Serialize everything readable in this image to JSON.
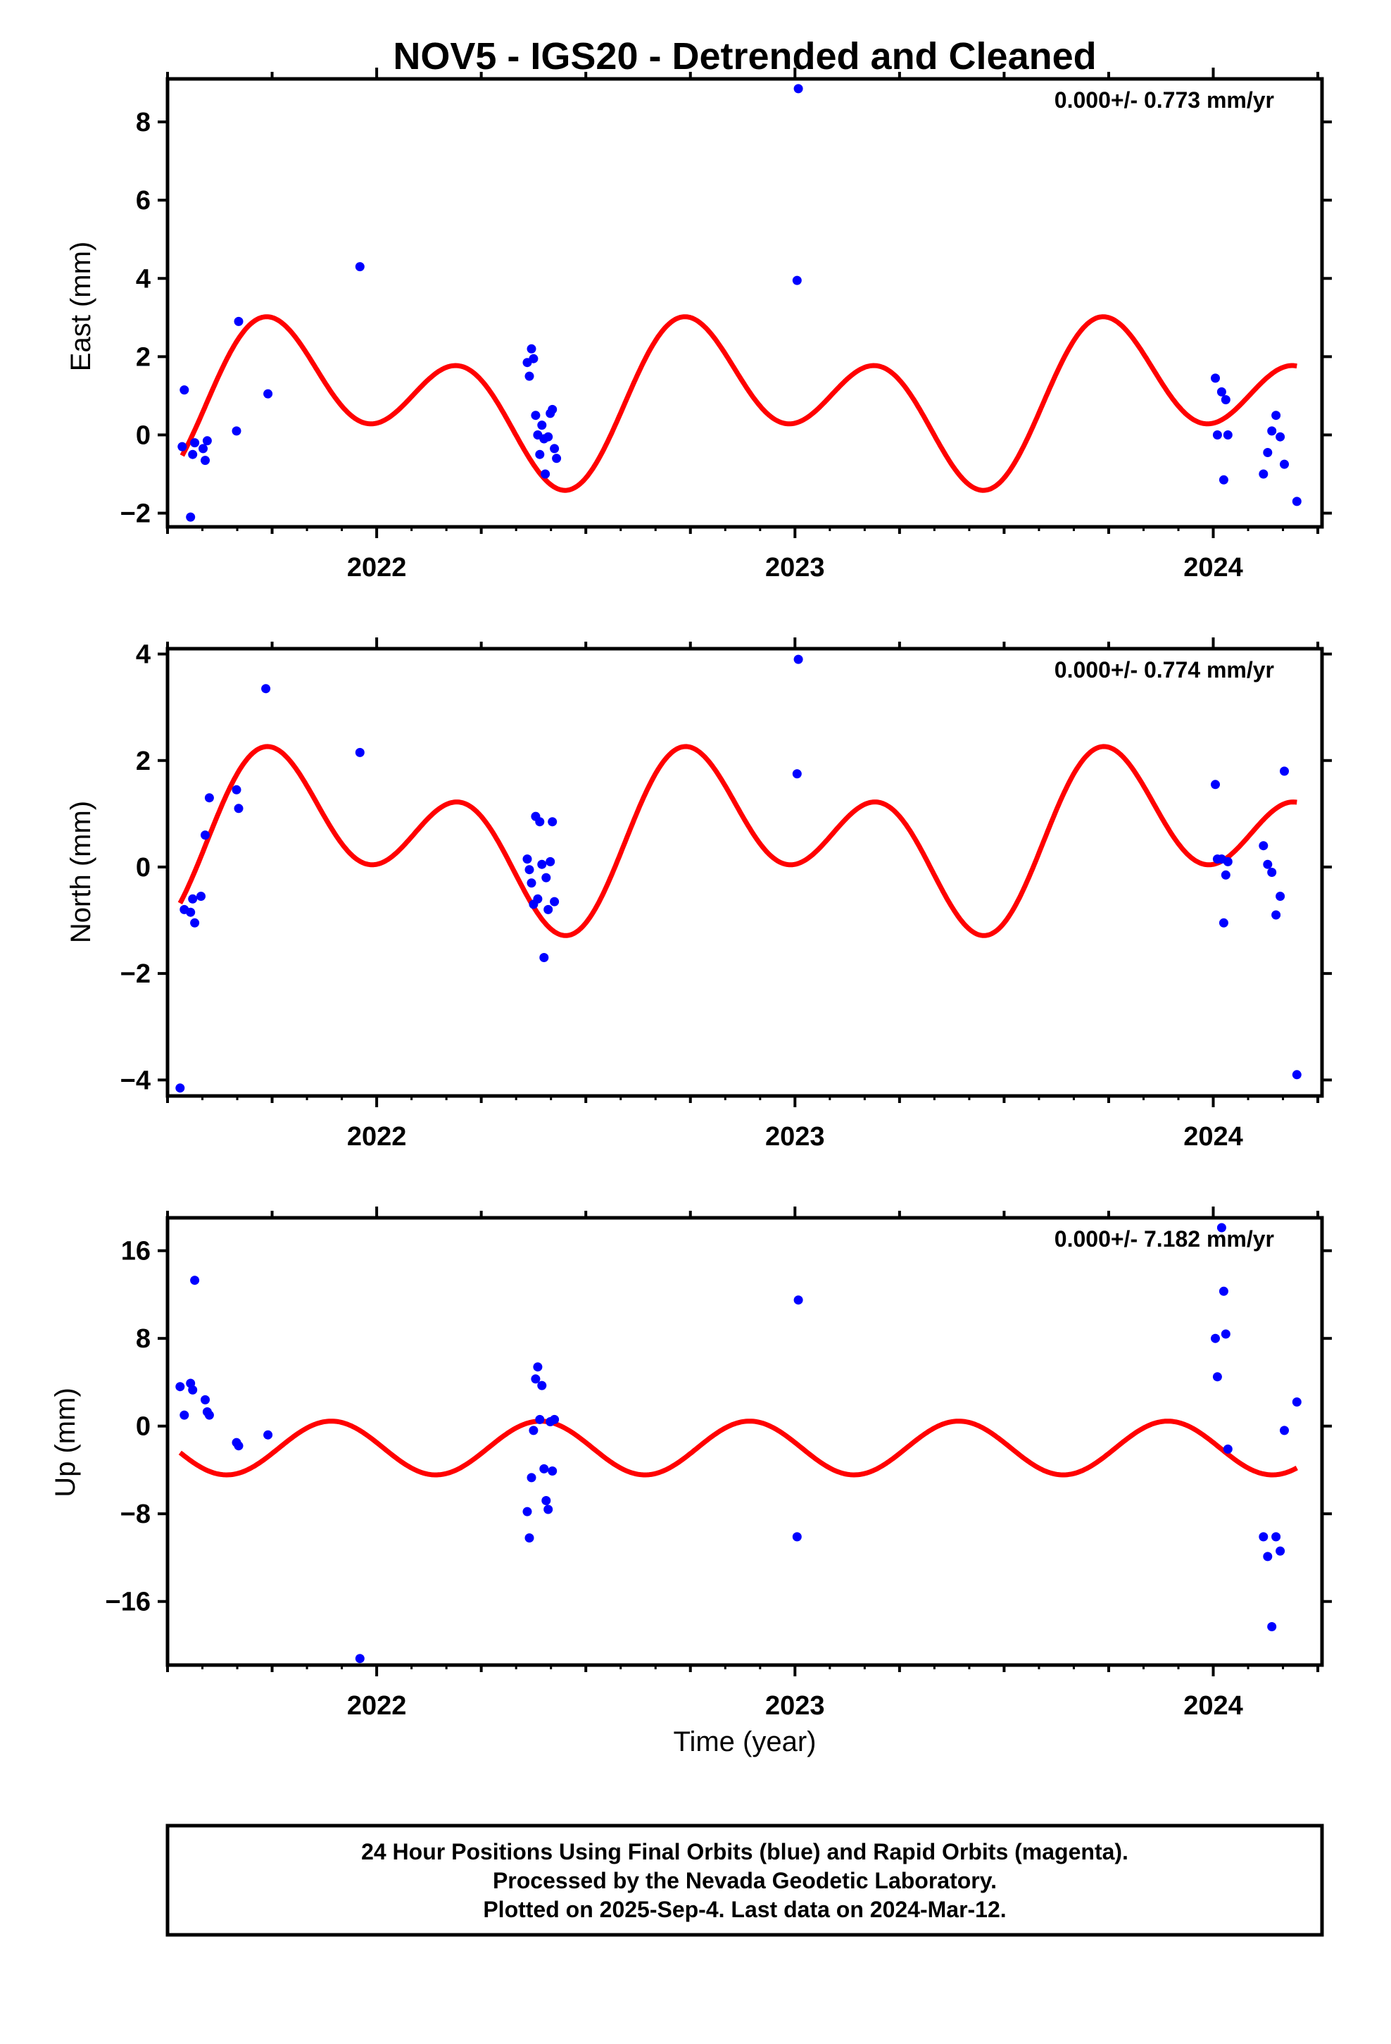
{
  "title": "NOV5 - IGS20 - Detrended and Cleaned",
  "colors": {
    "final_orbits": "#0000ff",
    "model_curve": "#ff0000",
    "axes": "#000000"
  },
  "footer": {
    "line1": "24 Hour Positions Using Final Orbits (blue) and Rapid Orbits (magenta).",
    "line2": "Processed by the Nevada Geodetic Laboratory.",
    "line3": "Plotted on 2025-Sep-4. Last data on 2024-Mar-12."
  },
  "chart_data": [
    {
      "type": "scatter",
      "name": "east",
      "ylabel": "East (mm)",
      "xlabel": "",
      "rate_label": "0.000+/- 0.773 mm/yr",
      "xlim": [
        2021.5,
        2024.26
      ],
      "ylim": [
        -2.35,
        9.1
      ],
      "yticks": [
        8,
        6,
        4,
        2,
        0,
        -2
      ],
      "ytick_labels": [
        "8",
        "6",
        "4",
        "2",
        "0",
        "−2"
      ],
      "xticks": [
        2022,
        2023,
        2024
      ],
      "xtick_labels": [
        "2022",
        "2023",
        "2024"
      ],
      "points": [
        [
          2021.535,
          -0.3
        ],
        [
          2021.54,
          1.15
        ],
        [
          2021.555,
          -2.1
        ],
        [
          2021.56,
          -0.5
        ],
        [
          2021.565,
          -0.2
        ],
        [
          2021.585,
          -0.35
        ],
        [
          2021.59,
          -0.65
        ],
        [
          2021.595,
          -0.15
        ],
        [
          2021.665,
          0.1
        ],
        [
          2021.67,
          2.9
        ],
        [
          2021.74,
          1.05
        ],
        [
          2021.96,
          4.3
        ],
        [
          2022.36,
          1.85
        ],
        [
          2022.365,
          1.5
        ],
        [
          2022.37,
          2.2
        ],
        [
          2022.375,
          1.95
        ],
        [
          2022.38,
          0.5
        ],
        [
          2022.385,
          0.0
        ],
        [
          2022.39,
          -0.5
        ],
        [
          2022.395,
          0.25
        ],
        [
          2022.4,
          -0.1
        ],
        [
          2022.403,
          -1.0
        ],
        [
          2022.41,
          -0.05
        ],
        [
          2022.415,
          0.55
        ],
        [
          2022.42,
          0.65
        ],
        [
          2022.425,
          -0.35
        ],
        [
          2022.43,
          -0.6
        ],
        [
          2023.005,
          3.95
        ],
        [
          2023.008,
          8.85
        ],
        [
          2024.005,
          1.45
        ],
        [
          2024.01,
          0.0
        ],
        [
          2024.02,
          1.1
        ],
        [
          2024.025,
          -1.15
        ],
        [
          2024.03,
          0.9
        ],
        [
          2024.035,
          0.0
        ],
        [
          2024.12,
          -1.0
        ],
        [
          2024.13,
          -0.45
        ],
        [
          2024.14,
          0.1
        ],
        [
          2024.15,
          0.5
        ],
        [
          2024.16,
          -0.05
        ],
        [
          2024.17,
          -0.75
        ],
        [
          2024.2,
          -1.7
        ]
      ],
      "model": {
        "offset": 0.9,
        "annual_cos": 0.7,
        "annual_sin": -0.8,
        "semi_cos": -1.3,
        "semi_sin": 0.6
      }
    },
    {
      "type": "scatter",
      "name": "north",
      "ylabel": "North (mm)",
      "xlabel": "",
      "rate_label": "0.000+/- 0.774 mm/yr",
      "xlim": [
        2021.5,
        2024.26
      ],
      "ylim": [
        -4.3,
        4.1
      ],
      "yticks": [
        4,
        2,
        0,
        -2,
        -4
      ],
      "ytick_labels": [
        "4",
        "2",
        "0",
        "−2",
        "−4"
      ],
      "xticks": [
        2022,
        2023,
        2024
      ],
      "xtick_labels": [
        "2022",
        "2023",
        "2024"
      ],
      "points": [
        [
          2021.53,
          -4.15
        ],
        [
          2021.54,
          -0.8
        ],
        [
          2021.555,
          -0.85
        ],
        [
          2021.56,
          -0.6
        ],
        [
          2021.565,
          -1.05
        ],
        [
          2021.58,
          -0.55
        ],
        [
          2021.59,
          0.6
        ],
        [
          2021.6,
          1.3
        ],
        [
          2021.665,
          1.45
        ],
        [
          2021.67,
          1.1
        ],
        [
          2021.735,
          3.35
        ],
        [
          2021.96,
          2.15
        ],
        [
          2022.36,
          0.15
        ],
        [
          2022.365,
          -0.05
        ],
        [
          2022.37,
          -0.3
        ],
        [
          2022.375,
          -0.7
        ],
        [
          2022.38,
          0.95
        ],
        [
          2022.385,
          -0.6
        ],
        [
          2022.39,
          0.85
        ],
        [
          2022.395,
          0.05
        ],
        [
          2022.4,
          -1.7
        ],
        [
          2022.405,
          -0.2
        ],
        [
          2022.41,
          -0.8
        ],
        [
          2022.415,
          0.1
        ],
        [
          2022.42,
          0.85
        ],
        [
          2022.425,
          -0.65
        ],
        [
          2023.005,
          1.75
        ],
        [
          2023.008,
          3.9
        ],
        [
          2024.005,
          1.55
        ],
        [
          2024.01,
          0.15
        ],
        [
          2024.02,
          0.15
        ],
        [
          2024.025,
          -1.05
        ],
        [
          2024.03,
          -0.15
        ],
        [
          2024.035,
          0.1
        ],
        [
          2024.12,
          0.4
        ],
        [
          2024.13,
          0.05
        ],
        [
          2024.14,
          -0.1
        ],
        [
          2024.15,
          -0.9
        ],
        [
          2024.16,
          -0.55
        ],
        [
          2024.17,
          1.8
        ],
        [
          2024.2,
          -3.9
        ]
      ],
      "model": {
        "offset": 0.55,
        "annual_cos": 0.55,
        "annual_sin": -0.65,
        "semi_cos": -1.05,
        "semi_sin": 0.45
      }
    },
    {
      "type": "scatter",
      "name": "up",
      "ylabel": "Up (mm)",
      "xlabel": "Time (year)",
      "rate_label": "0.000+/- 7.182 mm/yr",
      "xlim": [
        2021.5,
        2024.26
      ],
      "ylim": [
        -21.8,
        19.0
      ],
      "yticks": [
        16,
        8,
        0,
        -8,
        -16
      ],
      "ytick_labels": [
        "16",
        "8",
        "0",
        "−8",
        "−16"
      ],
      "xticks": [
        2022,
        2023,
        2024
      ],
      "xtick_labels": [
        "2022",
        "2023",
        "2024"
      ],
      "points": [
        [
          2021.53,
          3.6
        ],
        [
          2021.54,
          1.0
        ],
        [
          2021.555,
          3.9
        ],
        [
          2021.56,
          3.3
        ],
        [
          2021.565,
          13.3
        ],
        [
          2021.59,
          2.4
        ],
        [
          2021.595,
          1.3
        ],
        [
          2021.6,
          1.0
        ],
        [
          2021.665,
          -1.5
        ],
        [
          2021.67,
          -1.8
        ],
        [
          2021.74,
          -0.8
        ],
        [
          2021.96,
          -21.2
        ],
        [
          2022.36,
          -7.8
        ],
        [
          2022.365,
          -10.2
        ],
        [
          2022.37,
          -4.7
        ],
        [
          2022.375,
          -0.4
        ],
        [
          2022.38,
          4.3
        ],
        [
          2022.385,
          5.4
        ],
        [
          2022.39,
          0.6
        ],
        [
          2022.395,
          3.7
        ],
        [
          2022.4,
          -3.9
        ],
        [
          2022.405,
          -6.8
        ],
        [
          2022.41,
          -7.6
        ],
        [
          2022.415,
          0.4
        ],
        [
          2022.42,
          -4.1
        ],
        [
          2022.425,
          0.6
        ],
        [
          2023.005,
          -10.1
        ],
        [
          2023.008,
          11.5
        ],
        [
          2024.005,
          8.0
        ],
        [
          2024.01,
          4.5
        ],
        [
          2024.02,
          18.1
        ],
        [
          2024.025,
          12.3
        ],
        [
          2024.03,
          8.4
        ],
        [
          2024.035,
          -2.1
        ],
        [
          2024.12,
          -10.1
        ],
        [
          2024.13,
          -11.9
        ],
        [
          2024.14,
          -18.3
        ],
        [
          2024.15,
          -10.1
        ],
        [
          2024.16,
          -11.4
        ],
        [
          2024.17,
          -0.4
        ],
        [
          2024.2,
          2.2
        ]
      ],
      "model": {
        "offset": -2.0,
        "annual_cos": 0.0,
        "annual_sin": 0.0,
        "semi_cos": 0.5,
        "semi_sin": -2.4
      }
    }
  ]
}
